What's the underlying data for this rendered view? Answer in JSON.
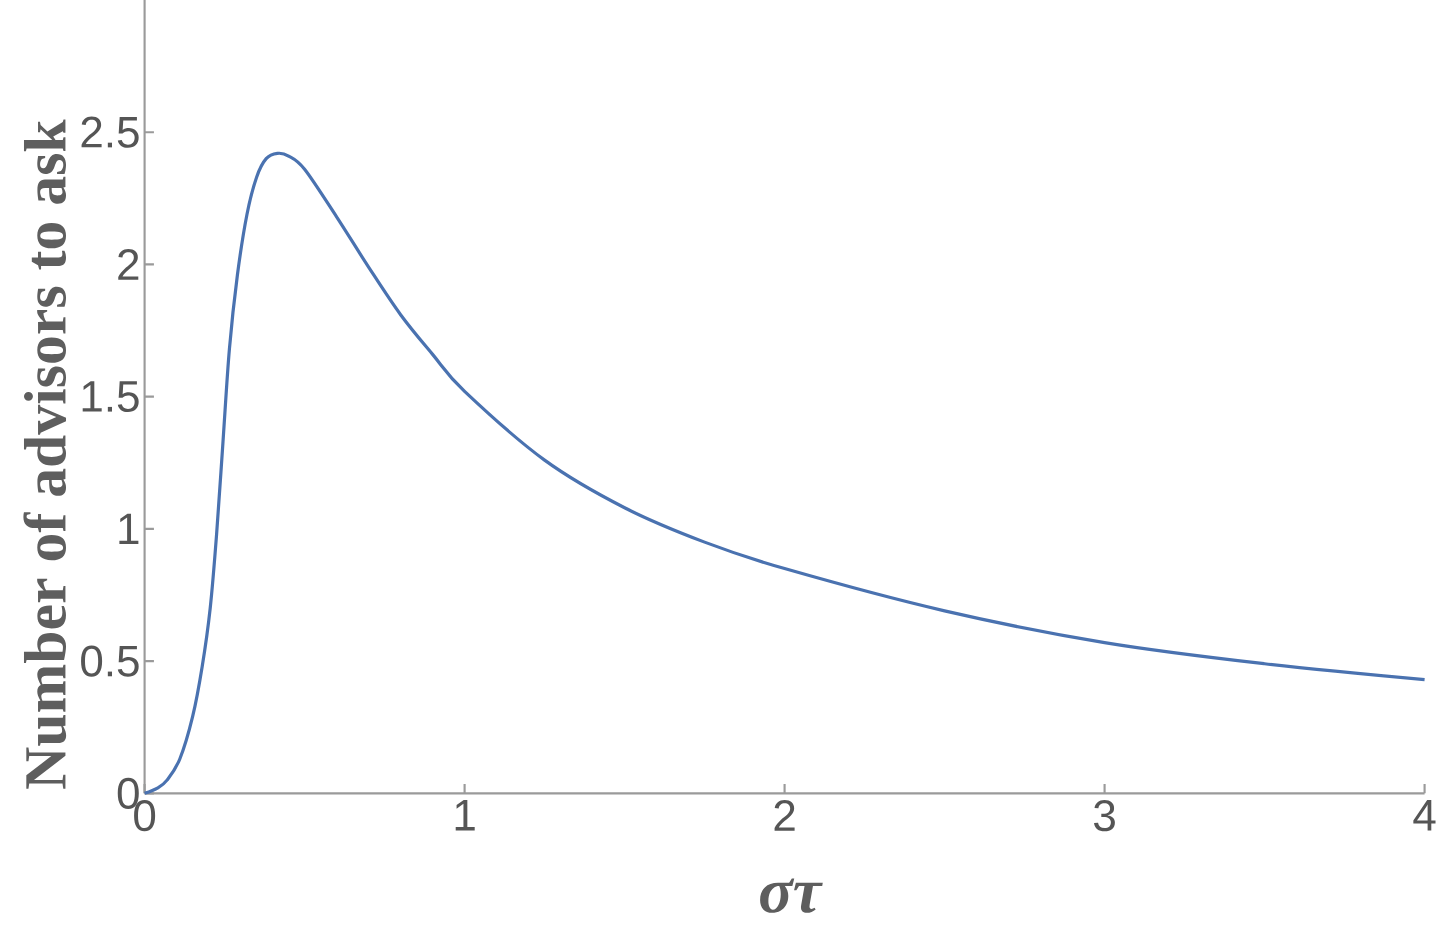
{
  "chart_data": {
    "type": "line",
    "xlabel": "στ",
    "ylabel": "Number of advisors to ask",
    "x": [
      0,
      0.04,
      0.07,
      0.11,
      0.15,
      0.18,
      0.205,
      0.225,
      0.245,
      0.265,
      0.29,
      0.32,
      0.35,
      0.38,
      0.415,
      0.45,
      0.5,
      0.6,
      0.7,
      0.8,
      0.9,
      1.0,
      1.25,
      1.5,
      1.75,
      2.0,
      2.5,
      3.0,
      3.5,
      4.0
    ],
    "series": [
      {
        "color": "#4a72b0",
        "values": [
          0,
          0.02,
          0.05,
          0.13,
          0.29,
          0.48,
          0.7,
          0.98,
          1.33,
          1.68,
          1.96,
          2.19,
          2.33,
          2.4,
          2.42,
          2.41,
          2.36,
          2.18,
          1.99,
          1.81,
          1.66,
          1.52,
          1.26,
          1.08,
          0.95,
          0.85,
          0.69,
          0.57,
          0.49,
          0.43
        ]
      }
    ],
    "xlim": [
      0,
      4
    ],
    "ylim": [
      0,
      3
    ],
    "xticks": [
      0,
      1,
      2,
      3,
      4
    ],
    "yticks": [
      0,
      0.5,
      1,
      1.5,
      2,
      2.5
    ]
  }
}
